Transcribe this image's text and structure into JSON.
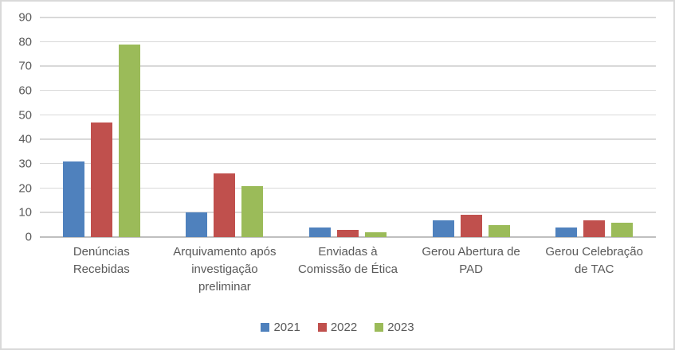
{
  "chart_data": {
    "type": "bar",
    "title": "",
    "categories": [
      "Denúncias\nRecebidas",
      "Arquivamento após\ninvestigação\npreliminar",
      "Enviadas à\nComissão de Ética",
      "Gerou Abertura de\nPAD",
      "Gerou Celebração\nde TAC"
    ],
    "series": [
      {
        "name": "2021",
        "color": "#4F81BD",
        "values": [
          31,
          10,
          4,
          7,
          4
        ]
      },
      {
        "name": "2022",
        "color": "#C0504D",
        "values": [
          47,
          26,
          3,
          9,
          7
        ]
      },
      {
        "name": "2023",
        "color": "#9BBB59",
        "values": [
          79,
          21,
          2,
          5,
          6
        ]
      }
    ],
    "ylim": [
      0,
      90
    ],
    "yticks": [
      0,
      10,
      20,
      30,
      40,
      50,
      60,
      70,
      80,
      90
    ],
    "grid": true,
    "legend_position": "bottom"
  },
  "colors": {
    "background": "#FFFFFF",
    "frame_border": "#D9D9D9",
    "gridline": "#D9D9D9",
    "axis_line": "#BFBFBF",
    "text": "#595959"
  }
}
